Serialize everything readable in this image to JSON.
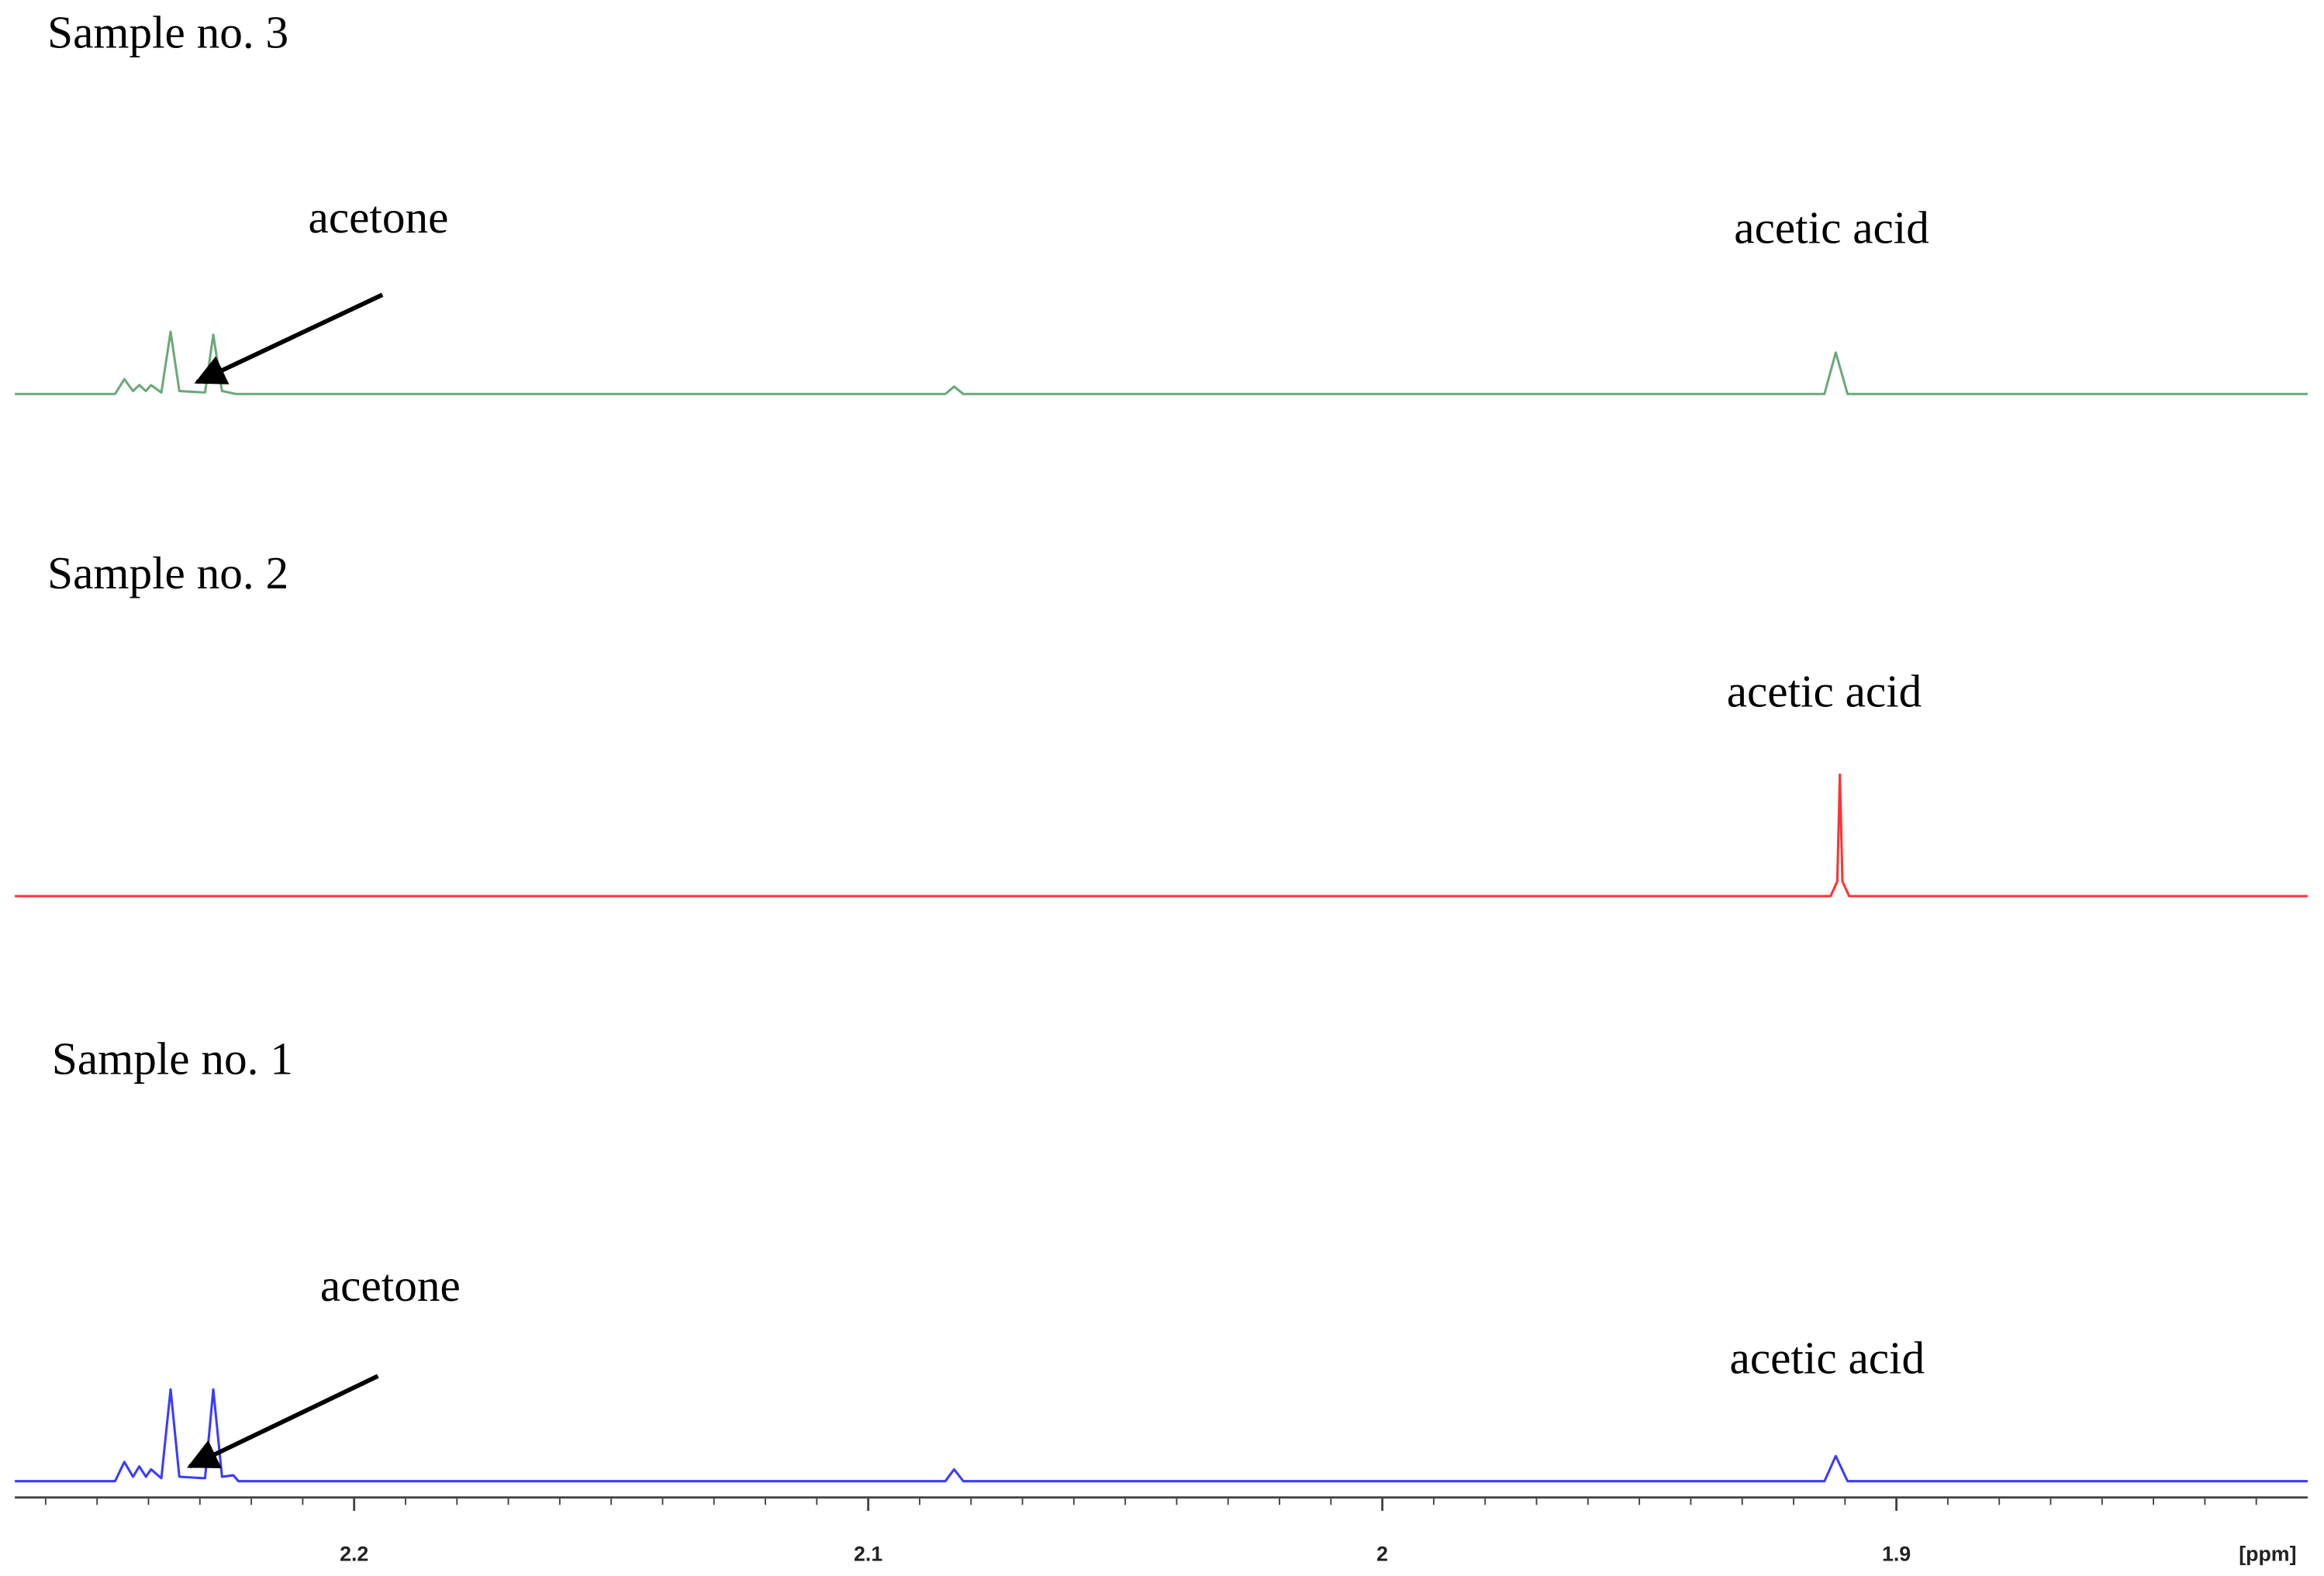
{
  "chart_data": {
    "type": "line",
    "xlim": [
      2.266,
      1.82
    ],
    "xticks": [
      2.2,
      2.1,
      2.0,
      1.9
    ],
    "xminorticks": [
      2.26,
      2.25,
      2.24,
      2.23,
      2.22,
      2.21,
      2.19,
      2.18,
      2.17,
      2.16,
      2.15,
      2.14,
      2.13,
      2.12,
      2.11,
      2.09,
      2.08,
      2.07,
      2.06,
      2.05,
      2.04,
      2.03,
      2.02,
      2.01,
      1.99,
      1.98,
      1.97,
      1.96,
      1.95,
      1.94,
      1.93,
      1.92,
      1.91,
      1.89,
      1.88,
      1.87,
      1.86,
      1.85,
      1.84,
      1.83
    ],
    "xlabel": "[ppm]",
    "series": [
      {
        "name": "Sample no. 3",
        "color": "#6aa97a",
        "annotations": [
          "acetone",
          "acetic acid"
        ],
        "x": [
          2.266,
          2.2465,
          2.2447,
          2.243,
          2.2418,
          2.2405,
          2.2395,
          2.2375,
          2.2357,
          2.234,
          2.229,
          2.2274,
          2.2257,
          2.223,
          2.085,
          2.0833,
          2.0815,
          1.914,
          1.9118,
          1.9095,
          1.82
        ],
        "values": [
          0,
          0,
          10,
          2,
          6,
          2,
          6,
          1,
          42,
          2,
          1,
          40,
          2,
          0,
          0,
          5,
          0,
          0,
          28,
          0,
          0
        ]
      },
      {
        "name": "Sample no. 2",
        "color": "#ff3333",
        "annotations": [
          "acetic acid"
        ],
        "x": [
          2.266,
          1.9128,
          1.9115,
          1.911,
          1.9105,
          1.9092,
          1.82
        ],
        "values": [
          0,
          0,
          10,
          82,
          10,
          0,
          0
        ]
      },
      {
        "name": "Sample no. 1",
        "color": "#3b3bff",
        "annotations": [
          "acetone",
          "acetic acid"
        ],
        "x": [
          2.266,
          2.2465,
          2.2447,
          2.243,
          2.2418,
          2.2405,
          2.2395,
          2.2375,
          2.2357,
          2.234,
          2.229,
          2.2274,
          2.2257,
          2.2235,
          2.2225,
          2.085,
          2.0833,
          2.0815,
          1.914,
          1.9118,
          1.9095,
          1.82
        ],
        "values": [
          0,
          0,
          13,
          3,
          10,
          3,
          8,
          2,
          62,
          3,
          2,
          62,
          3,
          4,
          0,
          0,
          8,
          0,
          0,
          17,
          0,
          0
        ]
      }
    ]
  }
}
